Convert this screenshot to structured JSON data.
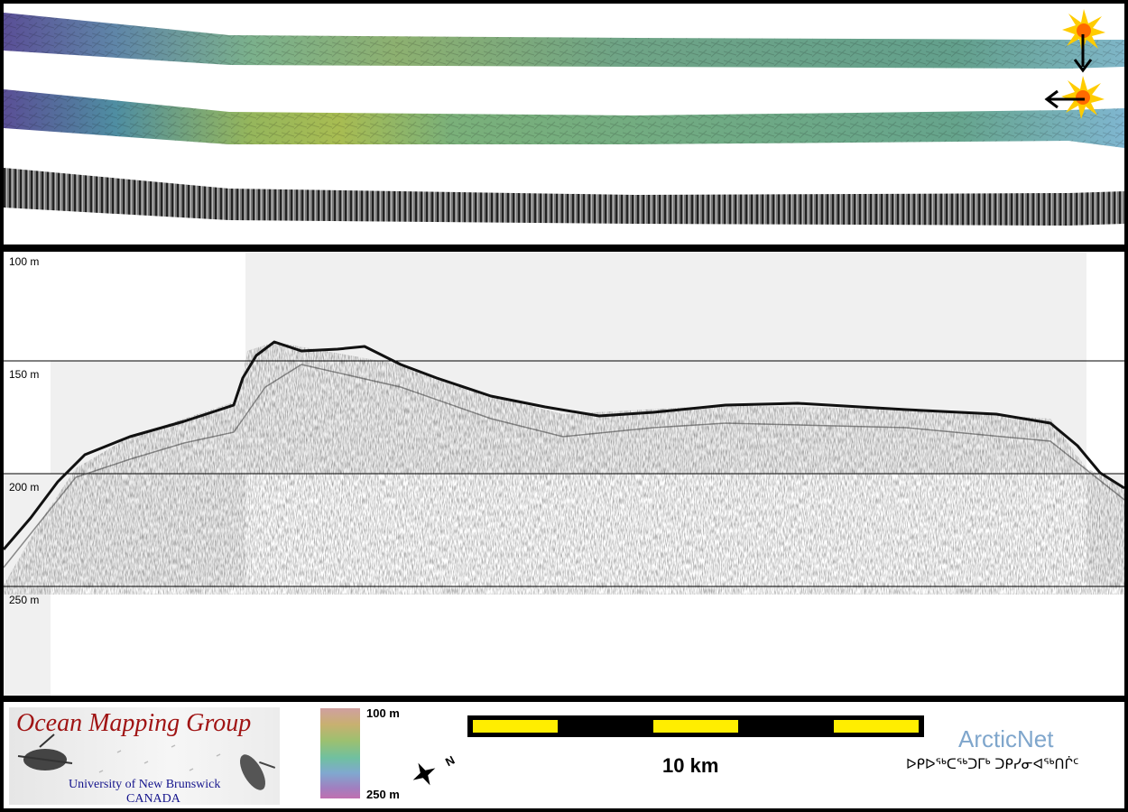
{
  "profile": {
    "depth_labels": [
      "100 m",
      "150 m",
      "200 m",
      "250 m"
    ]
  },
  "legend": {
    "org_title": "Ocean Mapping Group",
    "org_subtitle_1": "University of New Brunswick",
    "org_subtitle_2": "CANADA",
    "colorbar_top": "100 m",
    "colorbar_bottom": "250 m",
    "north_letter": "N",
    "scale_bar_length": "10 km",
    "partner_name": "ArcticNet",
    "partner_syllabics": "ᐅᑭᐅᖅᑕᖅᑐᒥᒃ ᑐᑭᓯᓂᐊᖅᑎᒌᑦ"
  },
  "colors": {
    "swath_low": "#5a4f96",
    "swath_mid": "#6fae96",
    "swath_high": "#9fb84e",
    "omg_red": "#a01414",
    "omg_blue": "#14148c",
    "arcticnet_blue": "#7fa6cc",
    "scale_yellow": "#ffee00"
  },
  "icons": [
    "sun-icon",
    "arrow-down-icon",
    "arrow-left-icon",
    "north-arrow-icon",
    "sonar-vehicle-icon"
  ]
}
